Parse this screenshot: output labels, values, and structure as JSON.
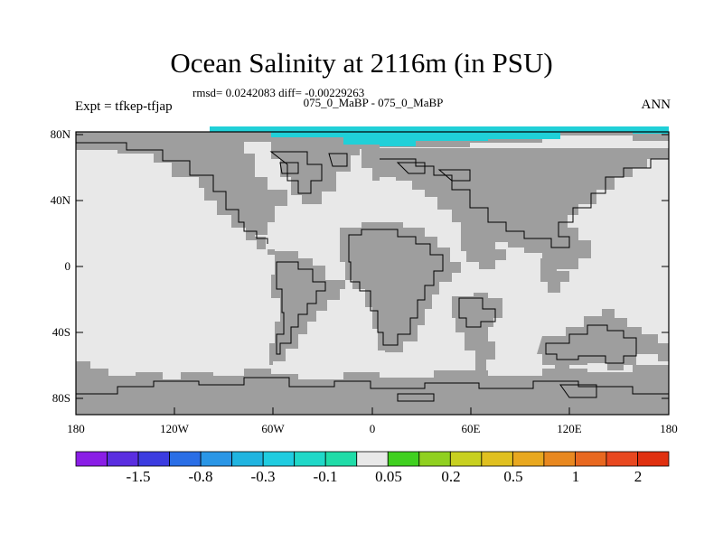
{
  "title": "Ocean Salinity at 2116m (in PSU)",
  "stats": "rmsd= 0.0242083 diff= -0.00229263",
  "experiment": "Expt = tfkep-tfjap",
  "comparison": "075_0_MaBP - 075_0_MaBP",
  "season": "ANN",
  "map": {
    "ocean_color": "#e8e8e8",
    "land_color": "#9e9e9e",
    "arctic_anomaly_color": "#20d0d8",
    "y_ticks": [
      "80N",
      "40N",
      "0",
      "40S",
      "80S"
    ],
    "x_ticks": [
      "180",
      "120W",
      "60W",
      "0",
      "60E",
      "120E",
      "180"
    ]
  },
  "colorbar": {
    "colors": [
      "#8a1ee6",
      "#5a2ee0",
      "#3c3ce0",
      "#2a6ee6",
      "#2a96e6",
      "#20b4e0",
      "#20cce0",
      "#20d8c8",
      "#20dca8",
      "#e8e8e8",
      "#40d020",
      "#90d020",
      "#c8d020",
      "#e0c020",
      "#e8a820",
      "#e88820",
      "#e86820",
      "#e84820",
      "#e03010"
    ],
    "labels": [
      "-1.5",
      "-0.8",
      "-0.3",
      "-0.1",
      "0.05",
      "0.2",
      "0.5",
      "1",
      "2"
    ]
  }
}
